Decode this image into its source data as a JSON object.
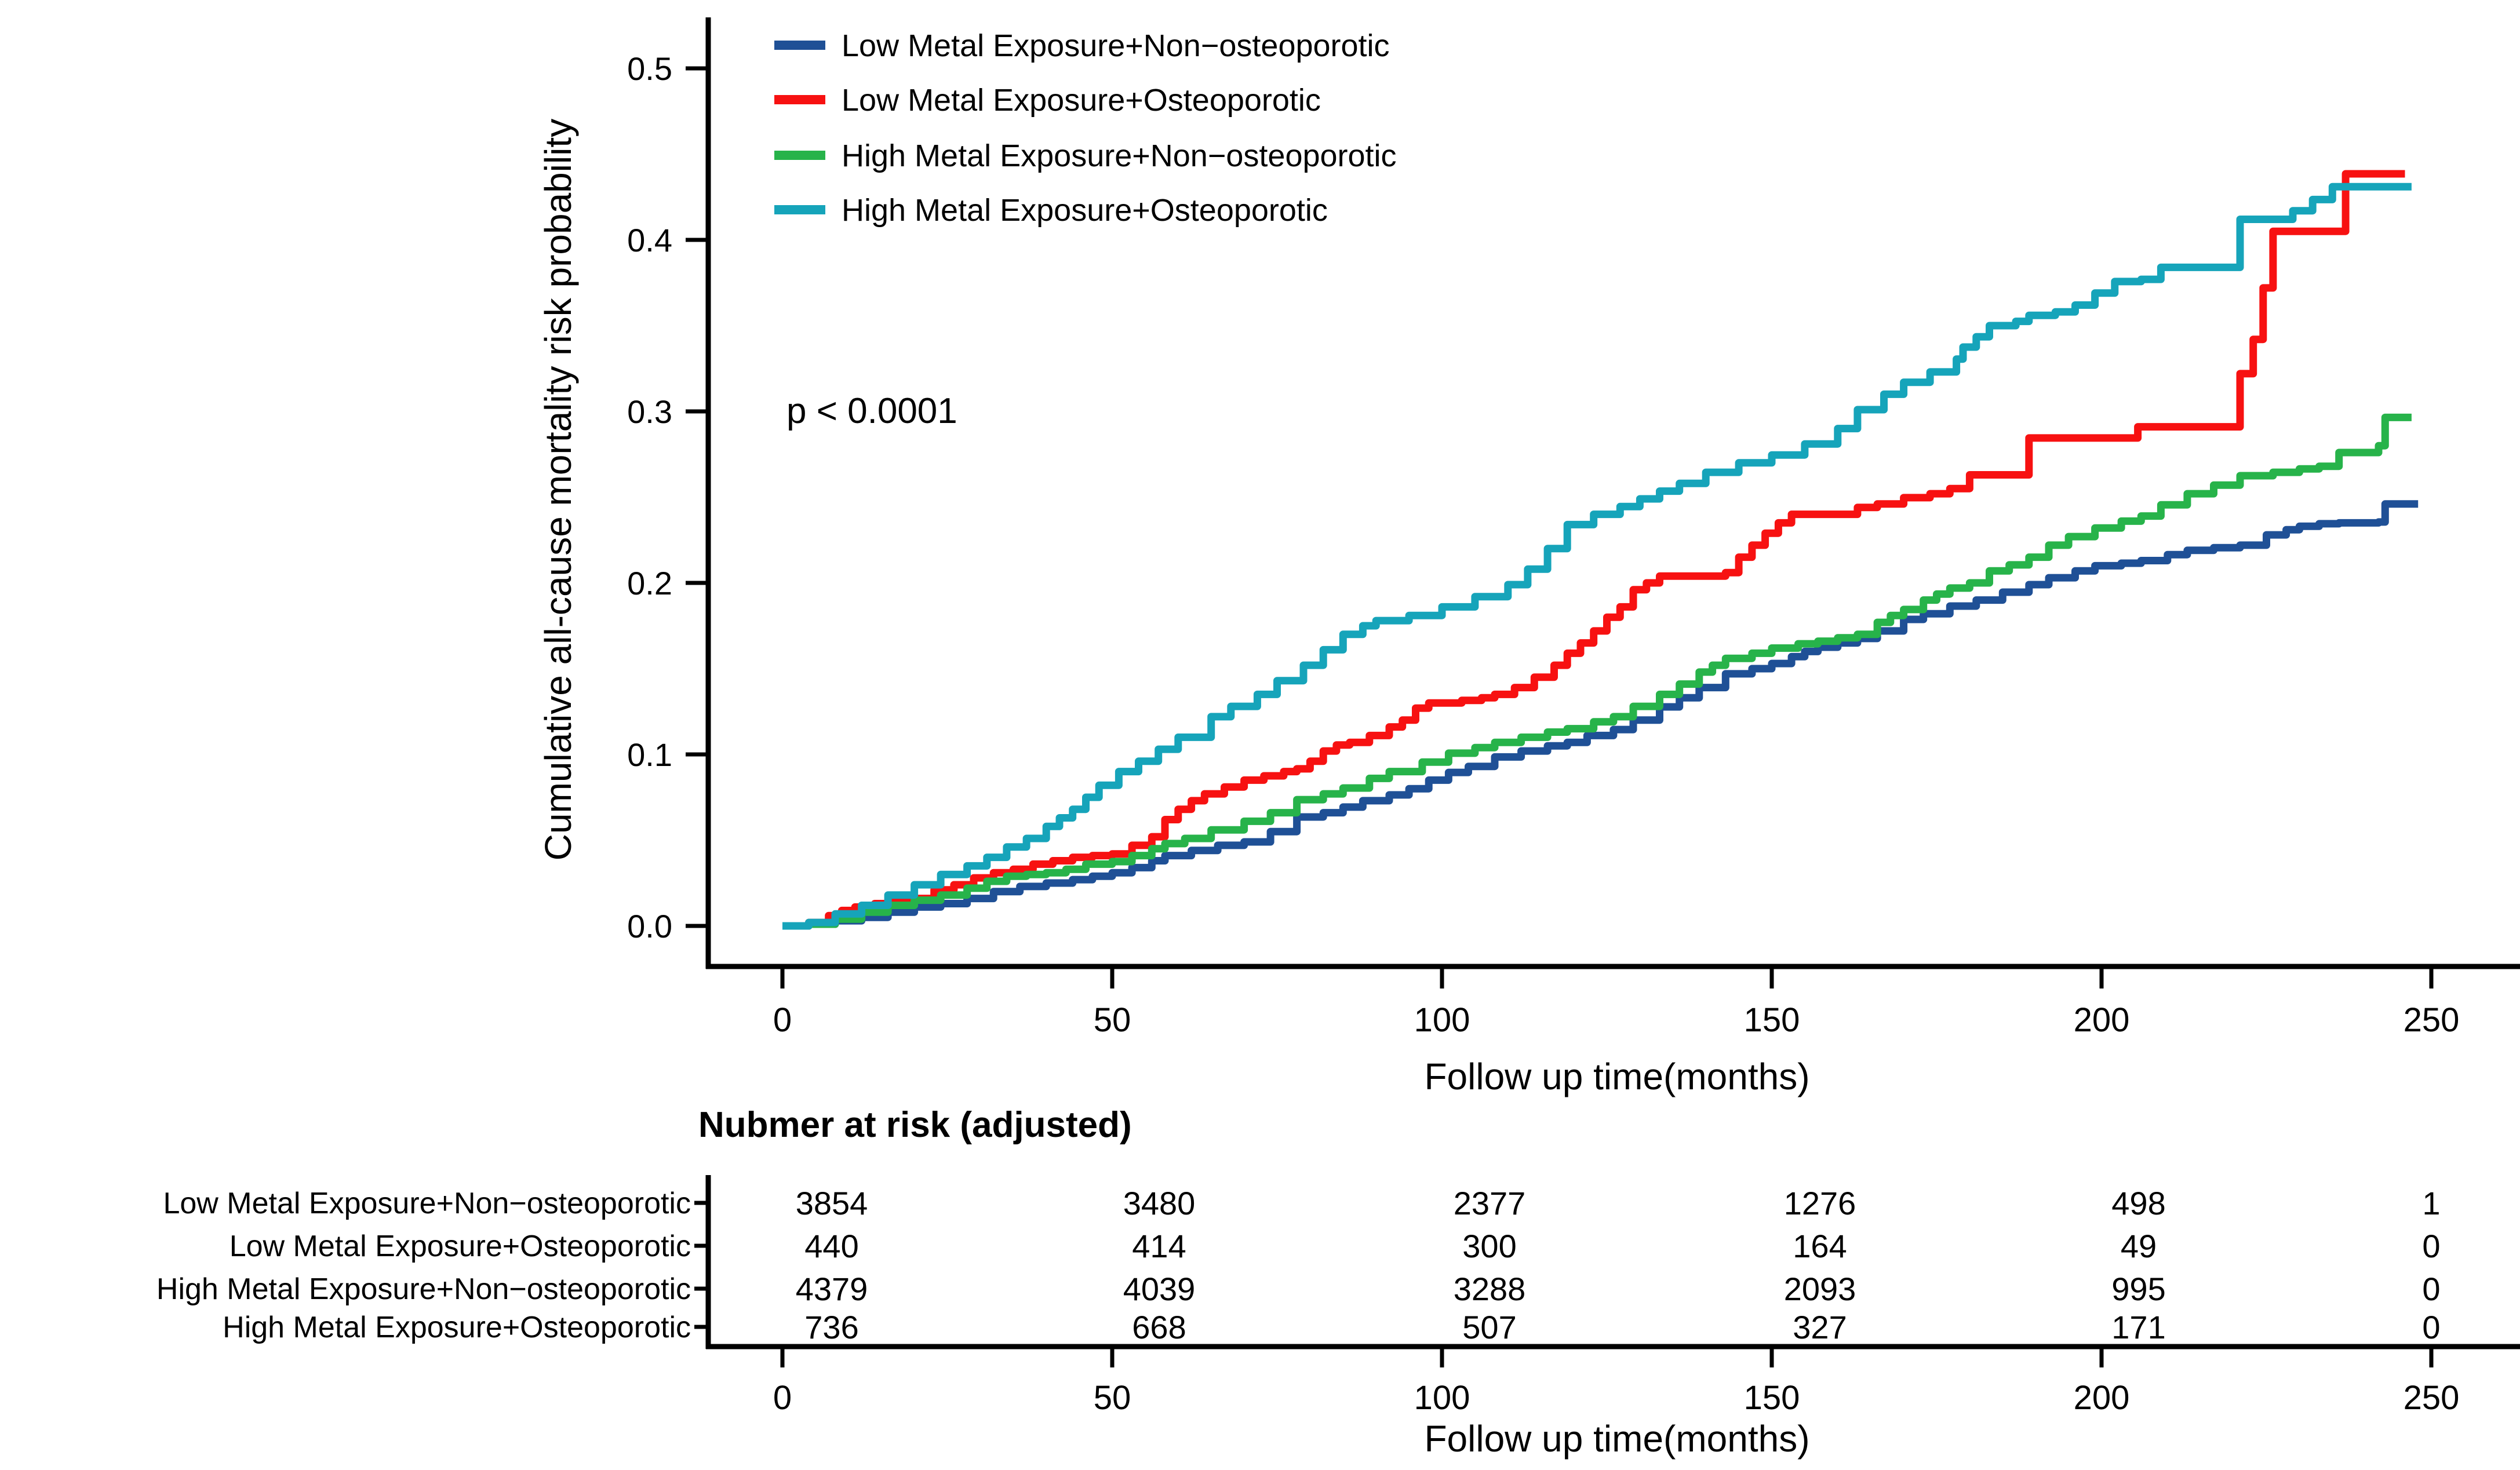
{
  "chart_data": {
    "type": "line",
    "subtype": "step-cumulative-incidence",
    "title": "",
    "xlabel": "Follow up time(months)",
    "ylabel": "Cumulative all-cause mortality risk probability",
    "annotation": "p < 0.0001",
    "xlim": [
      0,
      250
    ],
    "ylim": [
      0.0,
      0.5
    ],
    "xticks": [
      0,
      50,
      100,
      150,
      200,
      250
    ],
    "yticks": [
      0.0,
      0.1,
      0.2,
      0.3,
      0.4,
      0.5
    ],
    "grid": false,
    "legend_position": "top-left-inside",
    "series": [
      {
        "name": "Low Metal Exposure+Non−osteoporotic",
        "color": "#1f5096",
        "points": [
          [
            0,
            0
          ],
          [
            4,
            0.001
          ],
          [
            8,
            0.003
          ],
          [
            12,
            0.005
          ],
          [
            16,
            0.008
          ],
          [
            20,
            0.011
          ],
          [
            24,
            0.013
          ],
          [
            28,
            0.016
          ],
          [
            32,
            0.02
          ],
          [
            36,
            0.023
          ],
          [
            40,
            0.025
          ],
          [
            44,
            0.027
          ],
          [
            47,
            0.029
          ],
          [
            50,
            0.031
          ],
          [
            53,
            0.034
          ],
          [
            56,
            0.038
          ],
          [
            58,
            0.041
          ],
          [
            62,
            0.044
          ],
          [
            66,
            0.047
          ],
          [
            70,
            0.049
          ],
          [
            74,
            0.055
          ],
          [
            78,
            0.0635
          ],
          [
            82,
            0.066
          ],
          [
            85,
            0.0693
          ],
          [
            88,
            0.073
          ],
          [
            92,
            0.0764
          ],
          [
            95,
            0.08
          ],
          [
            98,
            0.085
          ],
          [
            101,
            0.0895
          ],
          [
            104,
            0.093
          ],
          [
            108,
            0.0985
          ],
          [
            112,
            0.102
          ],
          [
            116,
            0.105
          ],
          [
            119,
            0.107
          ],
          [
            122,
            0.111
          ],
          [
            126,
            0.1145
          ],
          [
            129,
            0.12
          ],
          [
            133,
            0.1277
          ],
          [
            136,
            0.133
          ],
          [
            139,
            0.139
          ],
          [
            143,
            0.147
          ],
          [
            147,
            0.15
          ],
          [
            150,
            0.153
          ],
          [
            153,
            0.157
          ],
          [
            155,
            0.16
          ],
          [
            157,
            0.1625
          ],
          [
            160,
            0.165
          ],
          [
            163,
            0.1676
          ],
          [
            166,
            0.172
          ],
          [
            170,
            0.1787
          ],
          [
            173,
            0.182
          ],
          [
            177,
            0.1865
          ],
          [
            181,
            0.19
          ],
          [
            185,
            0.1946
          ],
          [
            189,
            0.199
          ],
          [
            192,
            0.203
          ],
          [
            196,
            0.207
          ],
          [
            199,
            0.21
          ],
          [
            203,
            0.2115
          ],
          [
            206,
            0.213
          ],
          [
            210,
            0.2165
          ],
          [
            213,
            0.219
          ],
          [
            217,
            0.2205
          ],
          [
            221,
            0.222
          ],
          [
            225,
            0.228
          ],
          [
            228,
            0.231
          ],
          [
            230,
            0.233
          ],
          [
            233,
            0.2345
          ],
          [
            236,
            0.235
          ],
          [
            242,
            0.2355
          ],
          [
            243,
            0.246
          ],
          [
            248,
            0.246
          ]
        ]
      },
      {
        "name": "Low Metal Exposure+Osteoporotic",
        "color": "#f71111",
        "points": [
          [
            0,
            0
          ],
          [
            4,
            0.002
          ],
          [
            7,
            0.006
          ],
          [
            9,
            0.009
          ],
          [
            11,
            0.011
          ],
          [
            14,
            0.013
          ],
          [
            17,
            0.015
          ],
          [
            20,
            0.016
          ],
          [
            23,
            0.021
          ],
          [
            26,
            0.024
          ],
          [
            29,
            0.028
          ],
          [
            32,
            0.031
          ],
          [
            35,
            0.033
          ],
          [
            38,
            0.036
          ],
          [
            41,
            0.038
          ],
          [
            44,
            0.04
          ],
          [
            47,
            0.041
          ],
          [
            50,
            0.042
          ],
          [
            53,
            0.047
          ],
          [
            56,
            0.052
          ],
          [
            58,
            0.062
          ],
          [
            60,
            0.068
          ],
          [
            62,
            0.073
          ],
          [
            64,
            0.077
          ],
          [
            67,
            0.081
          ],
          [
            70,
            0.085
          ],
          [
            73,
            0.0875
          ],
          [
            76,
            0.09
          ],
          [
            78,
            0.0916
          ],
          [
            80,
            0.096
          ],
          [
            82,
            0.102
          ],
          [
            84,
            0.1055
          ],
          [
            86,
            0.107
          ],
          [
            89,
            0.111
          ],
          [
            92,
            0.116
          ],
          [
            94,
            0.12
          ],
          [
            96,
            0.127
          ],
          [
            98,
            0.13
          ],
          [
            103,
            0.1315
          ],
          [
            106,
            0.133
          ],
          [
            108,
            0.135
          ],
          [
            111,
            0.139
          ],
          [
            114,
            0.145
          ],
          [
            117,
            0.152
          ],
          [
            119,
            0.159
          ],
          [
            121,
            0.165
          ],
          [
            123,
            0.172
          ],
          [
            125,
            0.18
          ],
          [
            127,
            0.186
          ],
          [
            129,
            0.196
          ],
          [
            131,
            0.2
          ],
          [
            133,
            0.204
          ],
          [
            141,
            0.204
          ],
          [
            143,
            0.206
          ],
          [
            145,
            0.215
          ],
          [
            147,
            0.222
          ],
          [
            149,
            0.229
          ],
          [
            151,
            0.235
          ],
          [
            153,
            0.24
          ],
          [
            158,
            0.24
          ],
          [
            163,
            0.244
          ],
          [
            166,
            0.246
          ],
          [
            170,
            0.2497
          ],
          [
            174,
            0.252
          ],
          [
            177,
            0.255
          ],
          [
            180,
            0.263
          ],
          [
            188,
            0.263
          ],
          [
            189,
            0.2845
          ],
          [
            204,
            0.2845
          ],
          [
            205.5,
            0.291
          ],
          [
            221,
            0.322
          ],
          [
            223,
            0.342
          ],
          [
            224.5,
            0.372
          ],
          [
            226,
            0.405
          ],
          [
            236.5,
            0.405
          ],
          [
            237,
            0.4385
          ],
          [
            246,
            0.4385
          ]
        ]
      },
      {
        "name": "High Metal Exposure+Non−osteoporotic",
        "color": "#27b34a",
        "points": [
          [
            0,
            0
          ],
          [
            4,
            0.001
          ],
          [
            8,
            0.004
          ],
          [
            12,
            0.008
          ],
          [
            16,
            0.012
          ],
          [
            20,
            0.015
          ],
          [
            24,
            0.018
          ],
          [
            28,
            0.022
          ],
          [
            31,
            0.026
          ],
          [
            34,
            0.029
          ],
          [
            37,
            0.03
          ],
          [
            40,
            0.031
          ],
          [
            43,
            0.033
          ],
          [
            46,
            0.036
          ],
          [
            50,
            0.0375
          ],
          [
            53,
            0.041
          ],
          [
            56,
            0.045
          ],
          [
            58,
            0.048
          ],
          [
            61,
            0.051
          ],
          [
            65,
            0.056
          ],
          [
            70,
            0.061
          ],
          [
            74,
            0.066
          ],
          [
            78,
            0.0736
          ],
          [
            82,
            0.077
          ],
          [
            85,
            0.0804
          ],
          [
            89,
            0.086
          ],
          [
            92,
            0.09
          ],
          [
            97,
            0.0955
          ],
          [
            101,
            0.1007
          ],
          [
            105,
            0.104
          ],
          [
            108,
            0.107
          ],
          [
            112,
            0.11
          ],
          [
            116,
            0.113
          ],
          [
            119,
            0.115
          ],
          [
            123,
            0.119
          ],
          [
            126,
            0.122
          ],
          [
            129,
            0.128
          ],
          [
            133,
            0.135
          ],
          [
            136,
            0.141
          ],
          [
            139,
            0.148
          ],
          [
            141,
            0.152
          ],
          [
            143,
            0.156
          ],
          [
            147,
            0.159
          ],
          [
            150,
            0.162
          ],
          [
            154,
            0.1645
          ],
          [
            157,
            0.166
          ],
          [
            160,
            0.168
          ],
          [
            163,
            0.17
          ],
          [
            166,
            0.177
          ],
          [
            168,
            0.181
          ],
          [
            170,
            0.1845
          ],
          [
            173,
            0.19
          ],
          [
            175,
            0.1935
          ],
          [
            177,
            0.197
          ],
          [
            180,
            0.2
          ],
          [
            183,
            0.207
          ],
          [
            186,
            0.2105
          ],
          [
            189,
            0.215
          ],
          [
            192,
            0.222
          ],
          [
            195,
            0.227
          ],
          [
            199,
            0.232
          ],
          [
            203,
            0.236
          ],
          [
            206,
            0.239
          ],
          [
            209,
            0.2455
          ],
          [
            213,
            0.252
          ],
          [
            217,
            0.257
          ],
          [
            221,
            0.2625
          ],
          [
            226,
            0.2645
          ],
          [
            230,
            0.2665
          ],
          [
            233,
            0.268
          ],
          [
            236,
            0.276
          ],
          [
            242,
            0.28
          ],
          [
            243,
            0.2965
          ],
          [
            247,
            0.2965
          ]
        ]
      },
      {
        "name": "High Metal Exposure+Osteoporotic",
        "color": "#16a4ba",
        "points": [
          [
            0,
            0
          ],
          [
            4,
            0.002
          ],
          [
            8,
            0.007
          ],
          [
            12,
            0.012
          ],
          [
            16,
            0.018
          ],
          [
            20,
            0.024
          ],
          [
            24,
            0.03
          ],
          [
            28,
            0.035
          ],
          [
            31,
            0.04
          ],
          [
            34,
            0.046
          ],
          [
            37,
            0.051
          ],
          [
            40,
            0.058
          ],
          [
            42,
            0.063
          ],
          [
            44,
            0.068
          ],
          [
            46,
            0.075
          ],
          [
            48,
            0.082
          ],
          [
            51,
            0.09
          ],
          [
            54,
            0.096
          ],
          [
            57,
            0.103
          ],
          [
            60,
            0.11
          ],
          [
            65,
            0.122
          ],
          [
            68,
            0.128
          ],
          [
            72,
            0.135
          ],
          [
            75,
            0.143
          ],
          [
            79,
            0.152
          ],
          [
            82,
            0.161
          ],
          [
            85,
            0.17
          ],
          [
            88,
            0.175
          ],
          [
            90,
            0.178
          ],
          [
            95,
            0.181
          ],
          [
            100,
            0.186
          ],
          [
            105,
            0.192
          ],
          [
            110,
            0.199
          ],
          [
            113,
            0.208
          ],
          [
            116,
            0.22
          ],
          [
            119,
            0.234
          ],
          [
            123,
            0.24
          ],
          [
            127,
            0.2445
          ],
          [
            130,
            0.249
          ],
          [
            133,
            0.2535
          ],
          [
            136,
            0.258
          ],
          [
            140,
            0.2645
          ],
          [
            145,
            0.27
          ],
          [
            150,
            0.2746
          ],
          [
            155,
            0.281
          ],
          [
            160,
            0.29
          ],
          [
            163,
            0.301
          ],
          [
            167,
            0.31
          ],
          [
            170,
            0.317
          ],
          [
            174,
            0.323
          ],
          [
            178,
            0.3305
          ],
          [
            179,
            0.3375
          ],
          [
            181,
            0.3435
          ],
          [
            183,
            0.35
          ],
          [
            187,
            0.3525
          ],
          [
            189,
            0.356
          ],
          [
            193,
            0.358
          ],
          [
            196,
            0.362
          ],
          [
            199,
            0.369
          ],
          [
            202,
            0.3757
          ],
          [
            206,
            0.377
          ],
          [
            209,
            0.384
          ],
          [
            220,
            0.384
          ],
          [
            221,
            0.412
          ],
          [
            228,
            0.412
          ],
          [
            229,
            0.417
          ],
          [
            232,
            0.4235
          ],
          [
            235,
            0.431
          ],
          [
            247,
            0.431
          ]
        ]
      }
    ]
  },
  "risk_table": {
    "title": "Nubmer at risk (adjusted)",
    "xlabel": "Follow up time(months)",
    "xticks": [
      0,
      50,
      100,
      150,
      200,
      250
    ],
    "rows": [
      {
        "name": "Low Metal Exposure+Non−osteoporotic",
        "color": "#1f5096",
        "values": [
          3854,
          3480,
          2377,
          1276,
          498,
          1
        ]
      },
      {
        "name": "Low Metal Exposure+Osteoporotic",
        "color": "#f71111",
        "values": [
          440,
          414,
          300,
          164,
          49,
          0
        ]
      },
      {
        "name": "High Metal Exposure+Non−osteoporotic",
        "color": "#27b34a",
        "values": [
          4379,
          4039,
          3288,
          2093,
          995,
          0
        ]
      },
      {
        "name": "High Metal Exposure+Osteoporotic",
        "color": "#16a4ba",
        "values": [
          736,
          668,
          507,
          327,
          171,
          0
        ]
      }
    ]
  }
}
